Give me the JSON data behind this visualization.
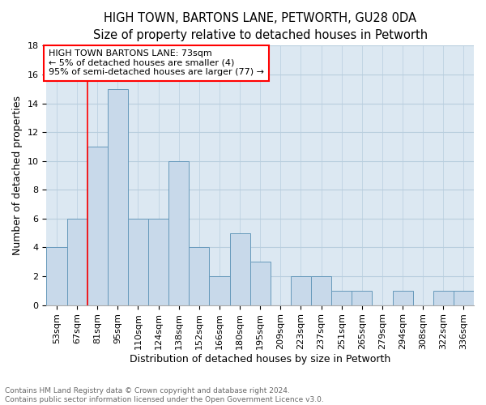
{
  "title": "HIGH TOWN, BARTONS LANE, PETWORTH, GU28 0DA",
  "subtitle": "Size of property relative to detached houses in Petworth",
  "xlabel": "Distribution of detached houses by size in Petworth",
  "ylabel": "Number of detached properties",
  "bar_labels": [
    "53sqm",
    "67sqm",
    "81sqm",
    "95sqm",
    "110sqm",
    "124sqm",
    "138sqm",
    "152sqm",
    "166sqm",
    "180sqm",
    "195sqm",
    "209sqm",
    "223sqm",
    "237sqm",
    "251sqm",
    "265sqm",
    "279sqm",
    "294sqm",
    "308sqm",
    "322sqm",
    "336sqm"
  ],
  "bar_values": [
    4,
    6,
    11,
    15,
    6,
    6,
    10,
    4,
    2,
    5,
    3,
    0,
    2,
    2,
    1,
    1,
    0,
    1,
    0,
    1,
    1
  ],
  "bar_color": "#c8d9ea",
  "bar_edge_color": "#6699bb",
  "bar_edge_width": 0.7,
  "grid_color": "#b8cede",
  "background_color": "#dce8f2",
  "red_line_x": 1.5,
  "annotation_box_text": [
    "HIGH TOWN BARTONS LANE: 73sqm",
    "← 5% of detached houses are smaller (4)",
    "95% of semi-detached houses are larger (77) →"
  ],
  "ylim": [
    0,
    18
  ],
  "yticks": [
    0,
    2,
    4,
    6,
    8,
    10,
    12,
    14,
    16,
    18
  ],
  "footer_text": "Contains HM Land Registry data © Crown copyright and database right 2024.\nContains public sector information licensed under the Open Government Licence v3.0.",
  "title_fontsize": 10.5,
  "subtitle_fontsize": 9.5,
  "xlabel_fontsize": 9,
  "ylabel_fontsize": 9,
  "annotation_fontsize": 8,
  "footer_fontsize": 6.5,
  "tick_fontsize": 8
}
